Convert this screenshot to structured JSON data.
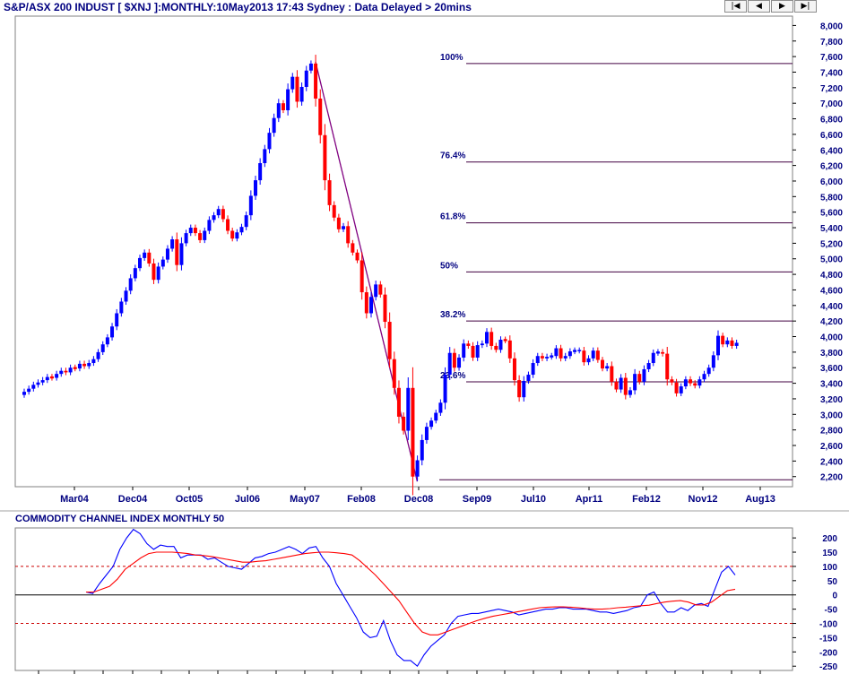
{
  "header": {
    "title": "S&P/ASX 200 INDUST [ $XNJ ]:MONTHLY:10May2013 17:43 Sydney : Data Delayed > 20mins",
    "nav_buttons": [
      {
        "label": "|◀",
        "icon": "first-icon"
      },
      {
        "label": "◀",
        "icon": "prev-icon"
      },
      {
        "label": "▶",
        "icon": "next-icon"
      },
      {
        "label": "▶|",
        "icon": "last-icon"
      }
    ]
  },
  "chart_data": [
    {
      "type": "candlestick",
      "title": "S&P/ASX 200 INDUST [ $XNJ ]:MONTHLY:10May2013 17:43 Sydney : Data Delayed > 20mins",
      "x_ticks": [
        "Mar04",
        "Dec04",
        "Oct05",
        "Jul06",
        "May07",
        "Feb08",
        "Dec08",
        "Sep09",
        "Jul10",
        "Apr11",
        "Feb12",
        "Nov12",
        "Aug13"
      ],
      "y_ticks": [
        2200,
        2400,
        2600,
        2800,
        3000,
        3200,
        3400,
        3600,
        3800,
        4000,
        4200,
        4400,
        4600,
        4800,
        5000,
        5200,
        5400,
        5600,
        5800,
        6000,
        6200,
        6400,
        6600,
        6800,
        7000,
        7200,
        7400,
        7600,
        7800,
        8000
      ],
      "y_tick_labels": [
        "2,200",
        "2,400",
        "2,600",
        "2,800",
        "3,000",
        "3,200",
        "3,400",
        "3,600",
        "3,800",
        "4,000",
        "4,200",
        "4,400",
        "4,600",
        "4,800",
        "5,000",
        "5,200",
        "5,400",
        "5,600",
        "5,800",
        "6,000",
        "6,200",
        "6,400",
        "6,600",
        "6,800",
        "7,000",
        "7,200",
        "7,400",
        "7,600",
        "7,800",
        "8,000"
      ],
      "ylim": [
        2070,
        8120
      ],
      "up_color": "#0000ff",
      "down_color": "#ff0000",
      "closes": [
        3290,
        3330,
        3380,
        3410,
        3440,
        3480,
        3470,
        3520,
        3560,
        3540,
        3600,
        3590,
        3650,
        3620,
        3660,
        3710,
        3800,
        3900,
        3990,
        4130,
        4300,
        4450,
        4590,
        4750,
        4880,
        5010,
        5080,
        4940,
        4730,
        4900,
        4990,
        5130,
        5250,
        4920,
        5200,
        5330,
        5400,
        5330,
        5240,
        5360,
        5500,
        5560,
        5640,
        5510,
        5360,
        5260,
        5340,
        5410,
        5560,
        5810,
        6010,
        6230,
        6410,
        6620,
        6810,
        7000,
        6910,
        7180,
        7340,
        7020,
        7210,
        7420,
        7510,
        7060,
        6590,
        6010,
        5690,
        5530,
        5380,
        5420,
        5200,
        5080,
        4980,
        4570,
        4300,
        4510,
        4670,
        4540,
        4190,
        3710,
        3340,
        2970,
        2790,
        3340,
        2200,
        2410,
        2670,
        2840,
        2920,
        3020,
        3150,
        3510,
        3790,
        3600,
        3730,
        3910,
        3880,
        3730,
        3890,
        3910,
        4060,
        3880,
        3830,
        3960,
        3950,
        3720,
        3440,
        3220,
        3430,
        3510,
        3660,
        3750,
        3720,
        3740,
        3750,
        3850,
        3720,
        3750,
        3810,
        3820,
        3820,
        3670,
        3720,
        3820,
        3700,
        3590,
        3620,
        3420,
        3320,
        3470,
        3250,
        3310,
        3520,
        3420,
        3580,
        3660,
        3790,
        3800,
        3780,
        3450,
        3410,
        3270,
        3360,
        3450,
        3400,
        3370,
        3450,
        3520,
        3600,
        3760,
        4010,
        3900,
        3950,
        3880,
        3920
      ],
      "fib_levels": [
        {
          "label": "100%",
          "value": 7510
        },
        {
          "label": "76.4%",
          "value": 6245
        },
        {
          "label": "61.8%",
          "value": 5463
        },
        {
          "label": "50%",
          "value": 4832
        },
        {
          "label": "38.2%",
          "value": 4200
        },
        {
          "label": "23.6%",
          "value": 3418
        },
        {
          "label": "",
          "value": 2160
        }
      ],
      "fib_line_color": "#400040",
      "trendline": {
        "from": 7510,
        "to": 2160,
        "color": "#800080"
      }
    },
    {
      "type": "line",
      "title": "COMMODITY CHANNEL INDEX MONTHLY 50",
      "y_ticks": [
        200,
        150,
        100,
        50,
        0,
        -50,
        -100,
        -150,
        -200,
        -250
      ],
      "y_tick_labels": [
        "200",
        "150",
        "100",
        "50",
        "0",
        "-50",
        "-100",
        "-150",
        "-200",
        "-250"
      ],
      "ylim": [
        -265,
        235
      ],
      "reference_lines": [
        100,
        0,
        -100
      ],
      "series": [
        {
          "color": "#0000ff",
          "values": [
            10,
            5,
            40,
            70,
            100,
            160,
            200,
            230,
            215,
            180,
            160,
            175,
            170,
            170,
            130,
            140,
            140,
            140,
            125,
            130,
            115,
            100,
            95,
            90,
            110,
            130,
            135,
            145,
            150,
            160,
            170,
            160,
            145,
            165,
            170,
            130,
            100,
            40,
            0,
            -40,
            -80,
            -130,
            -150,
            -145,
            -90,
            -160,
            -210,
            -230,
            -230,
            -250,
            -210,
            -180,
            -160,
            -140,
            -100,
            -75,
            -70,
            -65,
            -65,
            -60,
            -55,
            -50,
            -55,
            -60,
            -70,
            -65,
            -60,
            -55,
            -50,
            -50,
            -45,
            -45,
            -50,
            -50,
            -50,
            -55,
            -60,
            -60,
            -65,
            -60,
            -55,
            -45,
            -40,
            0,
            10,
            -30,
            -60,
            -60,
            -45,
            -55,
            -35,
            -30,
            -40,
            20,
            80,
            100,
            70
          ]
        },
        {
          "color": "#ff0000",
          "values": [
            10,
            10,
            20,
            30,
            55,
            90,
            110,
            130,
            145,
            150,
            150,
            150,
            148,
            145,
            140,
            138,
            135,
            130,
            125,
            120,
            115,
            115,
            118,
            120,
            125,
            130,
            135,
            140,
            145,
            148,
            150,
            150,
            148,
            145,
            140,
            120,
            95,
            70,
            40,
            10,
            -20,
            -60,
            -100,
            -130,
            -140,
            -140,
            -130,
            -120,
            -110,
            -100,
            -90,
            -82,
            -75,
            -70,
            -65,
            -60,
            -55,
            -50,
            -45,
            -43,
            -42,
            -42,
            -43,
            -45,
            -48,
            -50,
            -50,
            -48,
            -45,
            -43,
            -40,
            -38,
            -36,
            -30,
            -25,
            -22,
            -20,
            -25,
            -35,
            -35,
            -25,
            -5,
            15,
            20
          ]
        }
      ]
    }
  ]
}
